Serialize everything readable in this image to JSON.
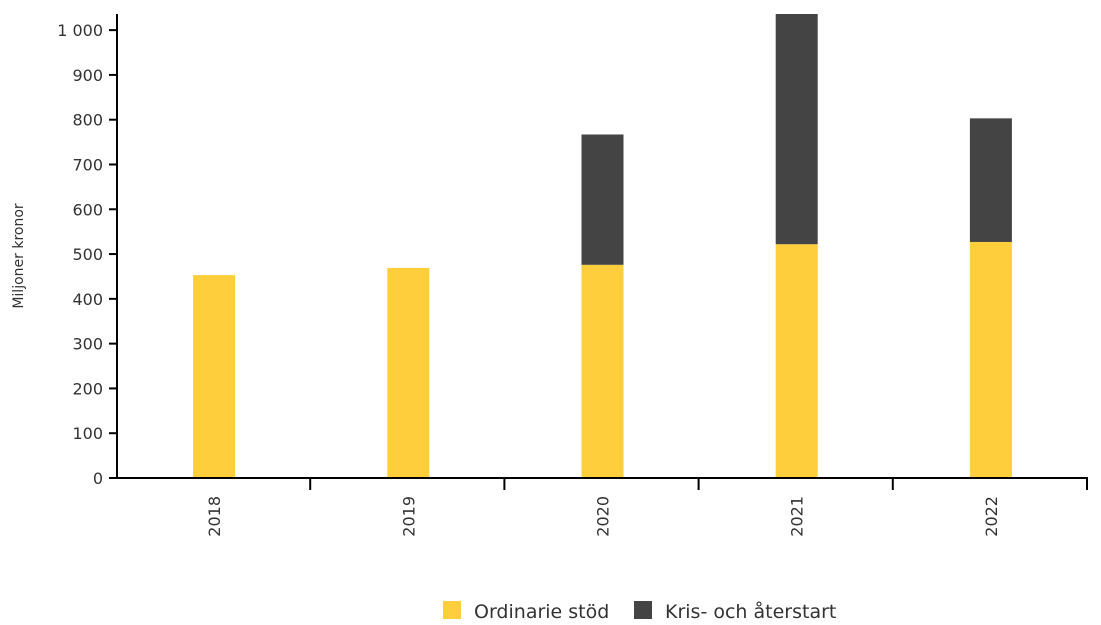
{
  "chart_data": {
    "type": "bar",
    "stacked": true,
    "categories": [
      "2018",
      "2019",
      "2020",
      "2021",
      "2022"
    ],
    "series": [
      {
        "name": "Ordinarie stöd",
        "color": "#FFCE3D",
        "values": [
          453,
          469,
          476,
          522,
          527
        ]
      },
      {
        "name": "Kris- och återstart",
        "color": "#444444",
        "values": [
          0,
          0,
          291,
          514,
          276
        ]
      }
    ],
    "ylabel": "Miljoner kronor",
    "ylim": [
      0,
      1036
    ],
    "yticks": [
      0,
      100,
      200,
      300,
      400,
      500,
      600,
      700,
      800,
      900,
      1000
    ],
    "ytick_labels": [
      "0",
      "100",
      "200",
      "300",
      "400",
      "500",
      "600",
      "700",
      "800",
      "900",
      "1 000"
    ],
    "grid": false,
    "legend_position": "bottom"
  }
}
